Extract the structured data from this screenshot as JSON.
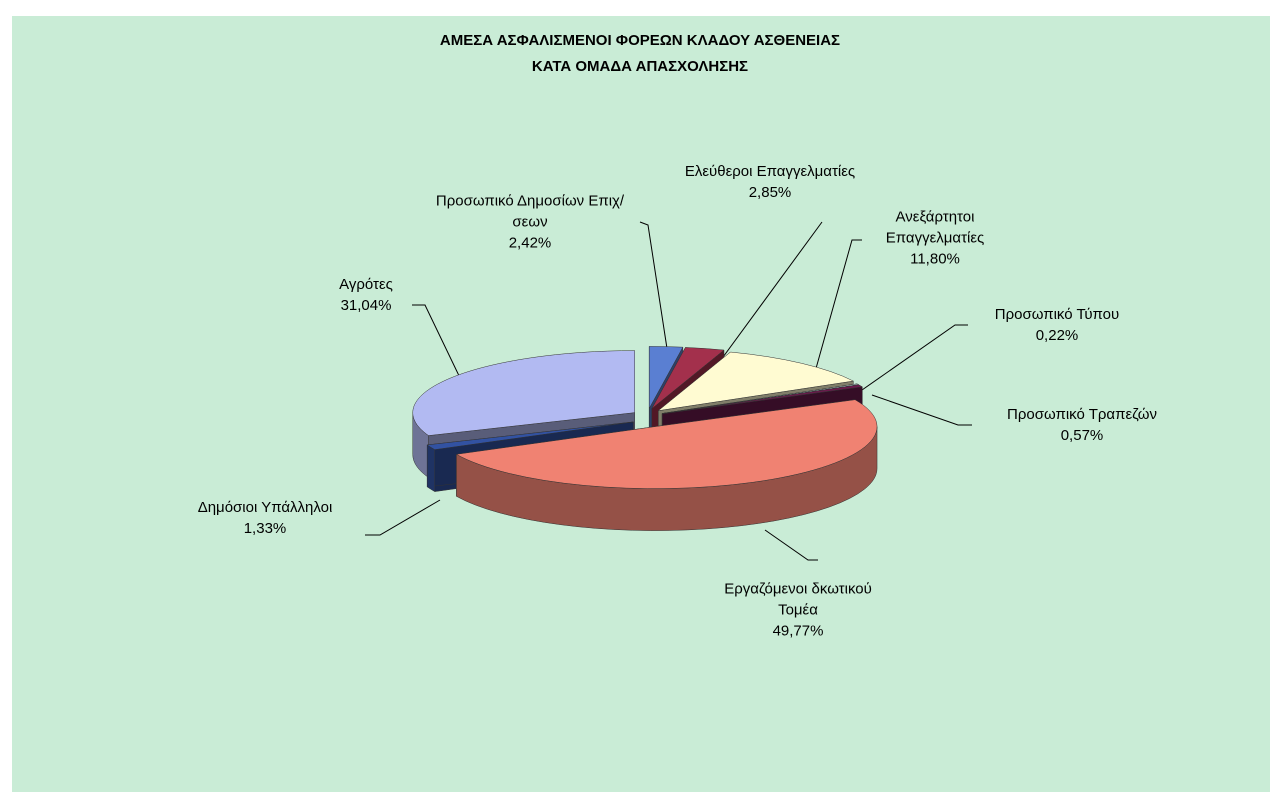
{
  "chart_data": {
    "type": "pie3d",
    "title": "ΑΜΕΣΑ ΑΣΦΑΛΙΣΜΕΝΟΙ ΦΟΡΕΩΝ ΚΛΑΔΟΥ ΑΣΘΕΝΕΙΑΣ",
    "subtitle": "ΚΑΤΑ ΟΜΑΔΑ ΑΠΑΣΧΟΛΗΣΗΣ",
    "categories": [
      "Προσωπικό Δημοσίων Επιχ/σεων",
      "Ελεύθεροι Επαγγελματίες",
      "Ανεξάρτητοι Επαγγελματίες",
      "Προσωπικό Τύπου",
      "Προσωπικό Τραπεζών",
      "Εργαζόμενοι δκωτικού Τομέα",
      "Δημόσιοι Υπάλληλοι",
      "Αγρότες"
    ],
    "values": [
      2.42,
      2.85,
      11.8,
      0.22,
      0.57,
      49.77,
      1.33,
      31.04
    ],
    "value_labels": [
      "2,42%",
      "2,85%",
      "11,80%",
      "0,22%",
      "0,57%",
      "49,77%",
      "1,33%",
      "31,04%"
    ],
    "colors": [
      "#5a7fd2",
      "#a3304c",
      "#fffbd2",
      "#d2f2f2",
      "#6a1a4c",
      "#f08272",
      "#3252a2",
      "#b2baf2"
    ]
  }
}
